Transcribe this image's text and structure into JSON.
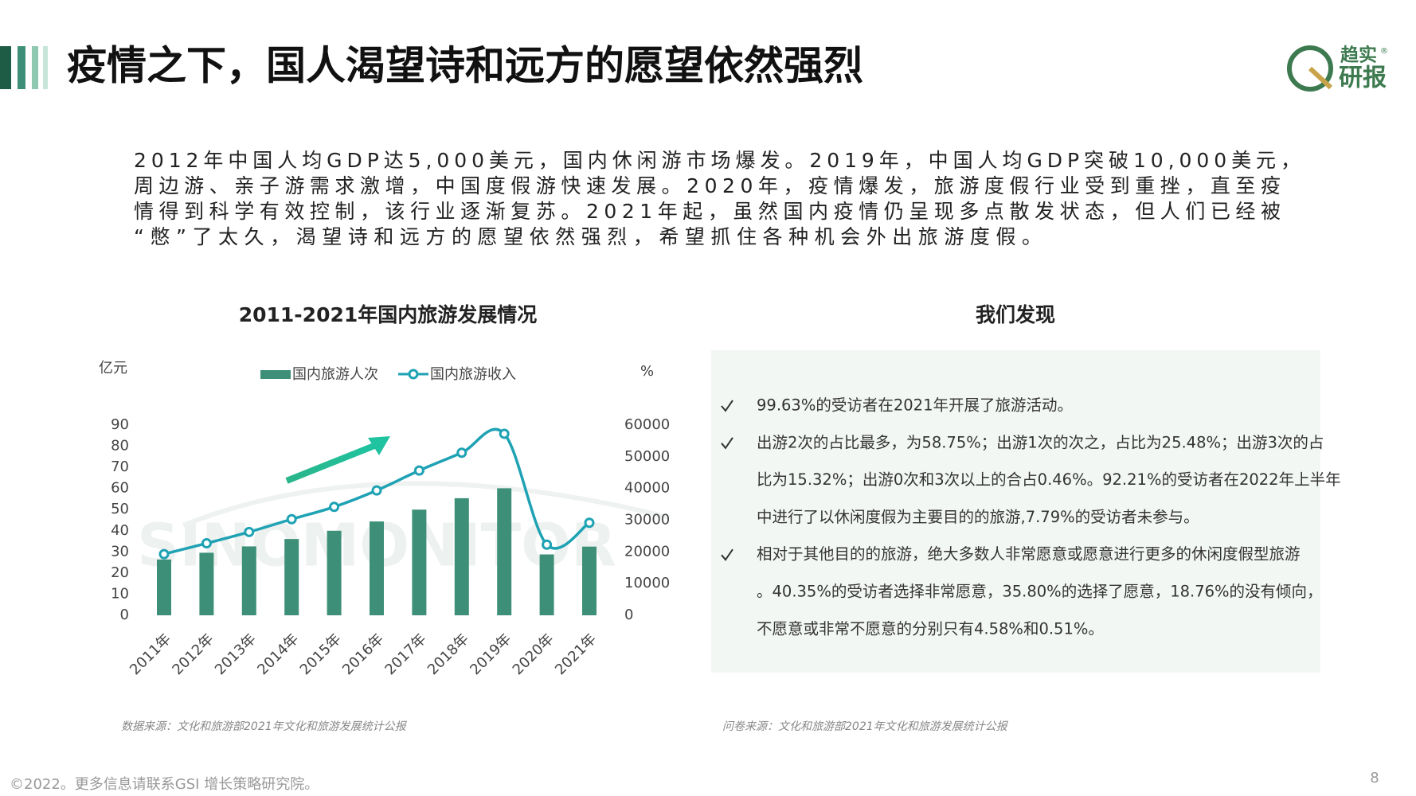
{
  "header": {
    "title": "疫情之下，国人渴望诗和远方的愿望依然强烈"
  },
  "logo": {
    "top": "趋实",
    "bottom": "研报",
    "mark": "®"
  },
  "intro": {
    "lines": [
      "2012年中国人均GDP达5,000美元，国内休闲游市场爆发。2019年，中国人均GDP突破10,000美元，",
      "周边游、亲子游需求激增，中国度假游快速发展。2020年，疫情爆发，旅游度假行业受到重挫，直至疫",
      "情得到科学有效控制，该行业逐渐复苏。2021年起，虽然国内疫情仍呈现多点散发状态，但人们已经被",
      "“憋”了太久，渴望诗和远方的愿望依然强烈，希望抓住各种机会外出旅游度假。"
    ]
  },
  "chart_data": {
    "type": "bar-line",
    "title": "2011-2021年国内旅游发展情况",
    "y_label": "亿元",
    "y2_label": "%",
    "watermark": "SINOMONITOR",
    "categories": [
      "2011年",
      "2012年",
      "2013年",
      "2014年",
      "2015年",
      "2016年",
      "2017年",
      "2018年",
      "2019年",
      "2020年",
      "2021年"
    ],
    "series": [
      {
        "name": "国内旅游人次",
        "color": "#3d9077",
        "type": "bar",
        "values": [
          26.4,
          29.6,
          32.6,
          36.1,
          40.0,
          44.4,
          50.0,
          55.4,
          60.1,
          28.8,
          32.5
        ]
      },
      {
        "name": "国内旅游收入",
        "color": "#1ea2b4",
        "type": "line",
        "axis": "y2",
        "values": [
          19305,
          22706,
          26276,
          30312,
          34195,
          39390,
          45661,
          51278,
          57251,
          22286,
          29191
        ]
      }
    ],
    "ylim": [
      0,
      90
    ],
    "yticks": [
      0,
      10,
      20,
      30,
      40,
      50,
      60,
      70,
      80,
      90
    ],
    "y2lim": [
      0,
      60000
    ],
    "y2ticks": [
      0,
      10000,
      20000,
      30000,
      40000,
      50000,
      60000
    ],
    "source": "数据来源：文化和旅游部2021年文化和旅游发展统计公报"
  },
  "findings": {
    "title": "我们发现",
    "items": [
      {
        "lines": [
          "99.63%的受访者在2021年开展了旅游活动。"
        ]
      },
      {
        "lines": [
          "出游2次的占比最多，为58.75%；出游1次的次之，占比为25.48%；出游3次的占",
          "比为15.32%；出游0次和3次以上的合占0.46%。92.21%的受访者在2022年上半年",
          "中进行了以休闲度假为主要目的的旅游,7.79%的受访者未参与。"
        ]
      },
      {
        "lines": [
          "相对于其他目的的旅游，绝大多数人非常愿意或愿意进行更多的休闲度假型旅游",
          "。40.35%的受访者选择非常愿意，35.80%的选择了愿意，18.76%的没有倾向，",
          "不愿意或非常不愿意的分别只有4.58%和0.51%。"
        ]
      }
    ],
    "source": "问卷来源：文化和旅游部2021年文化和旅游发展统计公报"
  },
  "footer": {
    "copyright": "©2022。更多信息请联系GSI 增长策略研究院。",
    "page": "8"
  }
}
